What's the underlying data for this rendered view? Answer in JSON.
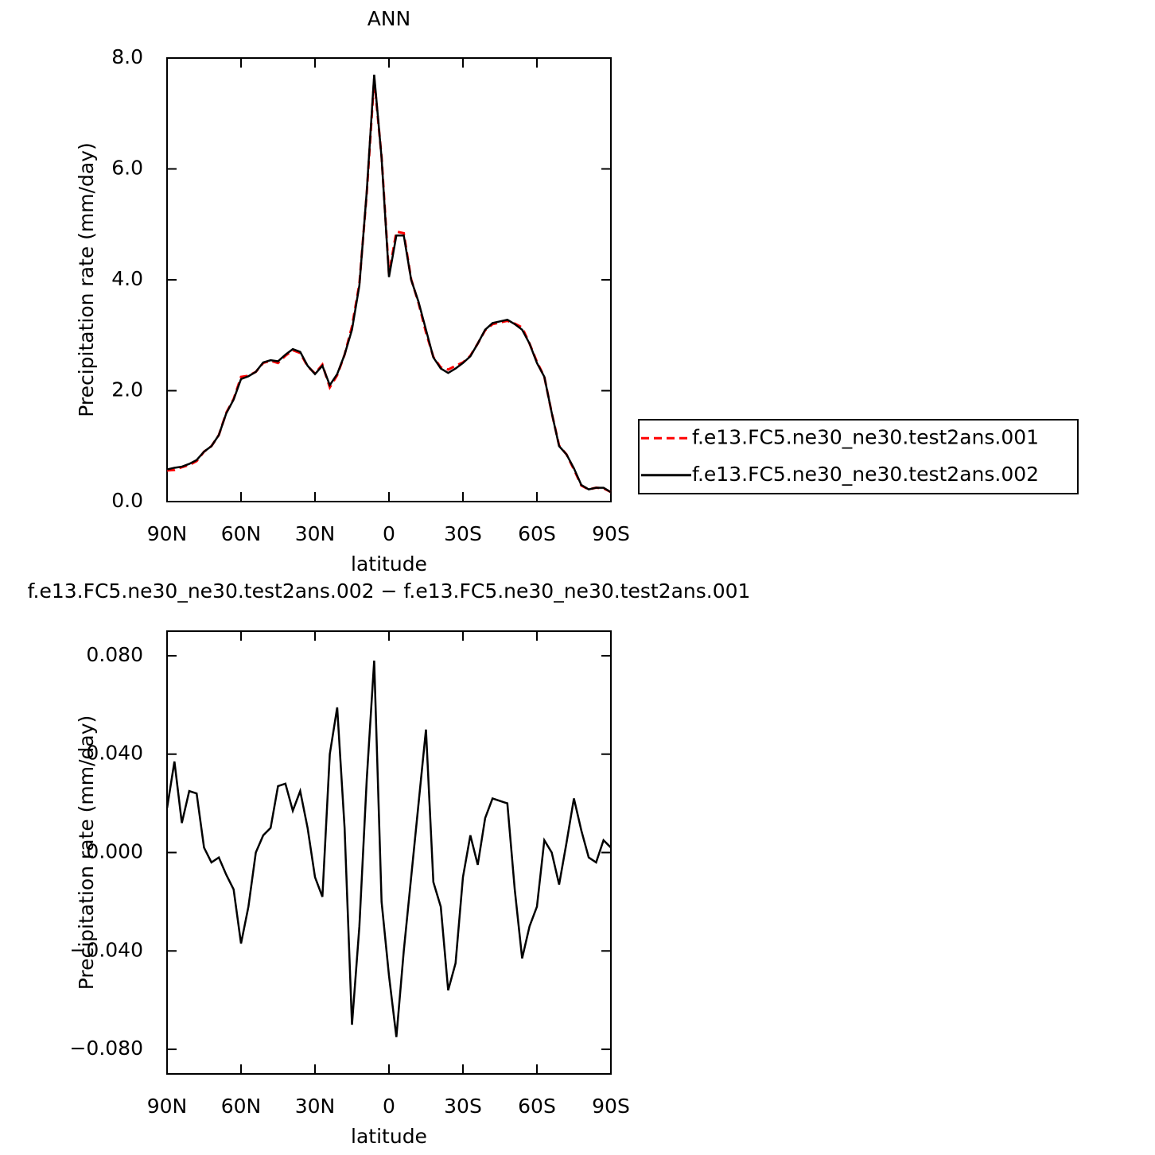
{
  "chart_data": [
    {
      "type": "line",
      "title": "ANN",
      "xlabel": "latitude",
      "ylabel": "Precipitation  rate  (mm/day)",
      "x": [
        90,
        87,
        84,
        81,
        78,
        75,
        72,
        69,
        66,
        63,
        60,
        57,
        54,
        51,
        48,
        45,
        42,
        39,
        36,
        33,
        30,
        27,
        24,
        21,
        18,
        15,
        12,
        9,
        6,
        3,
        0,
        -3,
        -6,
        -9,
        -12,
        -15,
        -18,
        -21,
        -24,
        -27,
        -30,
        -33,
        -36,
        -39,
        -42,
        -45,
        -48,
        -51,
        -54,
        -57,
        -60,
        -63,
        -66,
        -69,
        -72,
        -75,
        -78,
        -81,
        -84,
        -87,
        -90
      ],
      "series": [
        {
          "name": "f.e13.FC5.ne30_ne30.test2ans.001",
          "color": "#ff0000",
          "dash": true,
          "values": [
            0.56,
            0.57,
            0.62,
            0.66,
            0.73,
            0.9,
            1.0,
            1.2,
            1.6,
            1.85,
            2.25,
            2.27,
            2.34,
            2.5,
            2.54,
            2.5,
            2.63,
            2.73,
            2.68,
            2.44,
            2.31,
            2.47,
            2.06,
            2.28,
            2.65,
            3.16,
            3.93,
            5.57,
            7.62,
            6.22,
            4.1,
            4.87,
            4.84,
            4.01,
            3.58,
            3.05,
            2.61,
            2.42,
            2.38,
            2.45,
            2.51,
            2.63,
            2.85,
            3.09,
            3.2,
            3.23,
            3.26,
            3.21,
            3.14,
            2.85,
            2.52,
            2.25,
            1.6,
            1.01,
            0.85,
            0.58,
            0.29,
            0.22,
            0.25,
            0.24,
            0.17
          ]
        },
        {
          "name": "f.e13.FC5.ne30_ne30.test2ans.002",
          "color": "#000000",
          "dash": false,
          "values": [
            0.58,
            0.61,
            0.63,
            0.68,
            0.75,
            0.9,
            1.0,
            1.2,
            1.59,
            1.84,
            2.21,
            2.26,
            2.34,
            2.51,
            2.55,
            2.53,
            2.65,
            2.75,
            2.7,
            2.45,
            2.3,
            2.45,
            2.1,
            2.3,
            2.65,
            3.1,
            3.9,
            5.6,
            7.7,
            6.2,
            4.05,
            4.8,
            4.8,
            4.0,
            3.6,
            3.1,
            2.6,
            2.4,
            2.32,
            2.4,
            2.5,
            2.62,
            2.85,
            3.1,
            3.22,
            3.25,
            3.28,
            3.2,
            3.1,
            2.85,
            2.5,
            2.25,
            1.6,
            1.0,
            0.85,
            0.6,
            0.3,
            0.22,
            0.25,
            0.25,
            0.17
          ]
        }
      ],
      "xlim": [
        90,
        -90
      ],
      "xticks": [
        {
          "value": 90,
          "label": "90N"
        },
        {
          "value": 60,
          "label": "60N"
        },
        {
          "value": 30,
          "label": "30N"
        },
        0,
        {
          "value": -30,
          "label": "30S"
        },
        {
          "value": -60,
          "label": "60S"
        },
        {
          "value": -90,
          "label": "90S"
        }
      ],
      "ylim": [
        0,
        8
      ],
      "yticks": [
        {
          "value": 0,
          "label": "0.0"
        },
        {
          "value": 2,
          "label": "2.0"
        },
        {
          "value": 4,
          "label": "4.0"
        },
        {
          "value": 6,
          "label": "6.0"
        },
        {
          "value": 8,
          "label": "8.0"
        }
      ],
      "legend": "right"
    },
    {
      "type": "line",
      "title": "f.e13.FC5.ne30_ne30.test2ans.002  −  f.e13.FC5.ne30_ne30.test2ans.001",
      "xlabel": "latitude",
      "ylabel": "Precipitation  rate  (mm/day)",
      "x": [
        90,
        87,
        84,
        81,
        78,
        75,
        72,
        69,
        66,
        63,
        60,
        57,
        54,
        51,
        48,
        45,
        42,
        39,
        36,
        33,
        30,
        27,
        24,
        21,
        18,
        15,
        12,
        9,
        6,
        3,
        0,
        -3,
        -6,
        -9,
        -12,
        -15,
        -18,
        -21,
        -24,
        -27,
        -30,
        -33,
        -36,
        -39,
        -42,
        -45,
        -48,
        -51,
        -54,
        -57,
        -60,
        -63,
        -66,
        -69,
        -72,
        -75,
        -78,
        -81,
        -84,
        -87,
        -90
      ],
      "series": [
        {
          "color": "#000000",
          "dash": false,
          "values": [
            0.018,
            0.037,
            0.012,
            0.025,
            0.024,
            0.002,
            -0.004,
            -0.002,
            -0.009,
            -0.015,
            -0.037,
            -0.022,
            0.0,
            0.007,
            0.01,
            0.027,
            0.028,
            0.017,
            0.025,
            0.01,
            -0.01,
            -0.018,
            0.04,
            0.059,
            0.01,
            -0.07,
            -0.03,
            0.03,
            0.078,
            -0.02,
            -0.05,
            -0.075,
            -0.04,
            -0.01,
            0.02,
            0.05,
            -0.012,
            -0.022,
            -0.056,
            -0.045,
            -0.01,
            0.007,
            -0.005,
            0.014,
            0.022,
            0.021,
            0.02,
            -0.015,
            -0.043,
            -0.03,
            -0.022,
            0.005,
            0.0,
            -0.013,
            0.004,
            0.022,
            0.009,
            -0.002,
            -0.004,
            0.005,
            0.002
          ]
        }
      ],
      "xlim": [
        90,
        -90
      ],
      "xticks": [
        {
          "value": 90,
          "label": "90N"
        },
        {
          "value": 60,
          "label": "60N"
        },
        {
          "value": 30,
          "label": "30N"
        },
        0,
        {
          "value": -30,
          "label": "30S"
        },
        {
          "value": -60,
          "label": "60S"
        },
        {
          "value": -90,
          "label": "90S"
        }
      ],
      "ylim": [
        -0.09,
        0.09
      ],
      "yticks": [
        {
          "value": -0.08,
          "label": "−0.080"
        },
        {
          "value": -0.04,
          "label": "−0.040"
        },
        {
          "value": 0,
          "label": "0.000"
        },
        {
          "value": 0.04,
          "label": "0.040"
        },
        {
          "value": 0.08,
          "label": "0.080"
        }
      ]
    }
  ]
}
